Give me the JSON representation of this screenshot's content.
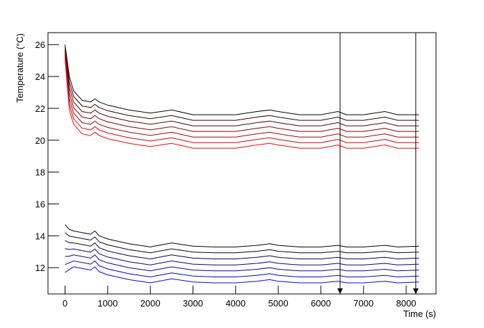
{
  "chart_data": {
    "type": "line",
    "x_label": "Time (s)",
    "y_label": "Temperature (°C)",
    "xlim": [
      -400,
      8700
    ],
    "ylim": [
      10.35,
      26.75
    ],
    "xticks": [
      0,
      1000,
      2000,
      3000,
      4000,
      5000,
      6000,
      7000,
      8000
    ],
    "yticks": [
      12,
      14,
      16,
      18,
      20,
      22,
      24,
      26
    ],
    "markers": [
      6450,
      8225
    ],
    "x": [
      0,
      100,
      200,
      400,
      600,
      700,
      800,
      1000,
      1500,
      2000,
      2500,
      3000,
      3500,
      4000,
      4500,
      4800,
      5000,
      5500,
      6000,
      6400,
      6600,
      7000,
      7500,
      7800,
      8300
    ],
    "series": [
      {
        "color": "#000000",
        "values": [
          26.0,
          24.0,
          23.1,
          22.5,
          22.4,
          22.6,
          22.4,
          22.2,
          21.9,
          21.7,
          21.9,
          21.6,
          21.6,
          21.6,
          21.8,
          21.9,
          21.8,
          21.6,
          21.6,
          21.8,
          21.6,
          21.6,
          21.8,
          21.6,
          21.6
        ]
      },
      {
        "color": "#2a0000",
        "values": [
          25.85,
          23.65,
          22.75,
          22.15,
          22.05,
          22.25,
          22.05,
          21.85,
          21.55,
          21.35,
          21.55,
          21.25,
          21.25,
          21.25,
          21.45,
          21.55,
          21.45,
          21.25,
          21.25,
          21.45,
          21.25,
          21.25,
          21.45,
          21.25,
          21.25
        ]
      },
      {
        "color": "#550000",
        "values": [
          25.7,
          23.3,
          22.4,
          21.8,
          21.7,
          21.9,
          21.7,
          21.5,
          21.2,
          21.0,
          21.2,
          20.9,
          20.9,
          20.9,
          21.1,
          21.2,
          21.1,
          20.9,
          20.9,
          21.1,
          20.9,
          20.9,
          21.1,
          20.9,
          20.9
        ]
      },
      {
        "color": "#800000",
        "values": [
          25.55,
          22.95,
          22.05,
          21.45,
          21.35,
          21.55,
          21.35,
          21.15,
          20.85,
          20.65,
          20.85,
          20.55,
          20.55,
          20.55,
          20.75,
          20.85,
          20.75,
          20.55,
          20.55,
          20.75,
          20.55,
          20.55,
          20.75,
          20.55,
          20.55
        ]
      },
      {
        "color": "#aa0000",
        "values": [
          25.4,
          22.6,
          21.7,
          21.1,
          21.0,
          21.2,
          21.0,
          20.8,
          20.5,
          20.3,
          20.5,
          20.2,
          20.2,
          20.2,
          20.4,
          20.5,
          20.4,
          20.2,
          20.2,
          20.4,
          20.2,
          20.2,
          20.4,
          20.2,
          20.2
        ]
      },
      {
        "color": "#d40000",
        "values": [
          25.25,
          22.25,
          21.35,
          20.75,
          20.65,
          20.85,
          20.65,
          20.45,
          20.15,
          19.95,
          20.15,
          19.85,
          19.85,
          19.85,
          20.05,
          20.15,
          20.05,
          19.85,
          19.85,
          20.05,
          19.85,
          19.85,
          20.05,
          19.85,
          19.85
        ]
      },
      {
        "color": "#ff0000",
        "values": [
          25.1,
          21.9,
          21.0,
          20.4,
          20.3,
          20.5,
          20.3,
          20.1,
          19.8,
          19.6,
          19.8,
          19.5,
          19.5,
          19.5,
          19.7,
          19.8,
          19.7,
          19.5,
          19.5,
          19.7,
          19.5,
          19.5,
          19.7,
          19.5,
          19.5
        ]
      },
      {
        "color": "#000000",
        "values": [
          14.7,
          14.4,
          14.3,
          14.2,
          14.1,
          14.3,
          14.0,
          13.8,
          13.5,
          13.3,
          13.55,
          13.35,
          13.3,
          13.3,
          13.4,
          13.5,
          13.4,
          13.3,
          13.3,
          13.4,
          13.3,
          13.3,
          13.4,
          13.3,
          13.35
        ]
      },
      {
        "color": "#00002a",
        "values": [
          14.2,
          13.98,
          13.93,
          13.83,
          13.73,
          13.93,
          13.63,
          13.43,
          13.13,
          12.93,
          13.18,
          12.98,
          12.93,
          12.93,
          13.03,
          13.13,
          13.03,
          12.93,
          12.93,
          13.03,
          12.93,
          12.93,
          13.03,
          12.93,
          12.98
        ]
      },
      {
        "color": "#000055",
        "values": [
          13.7,
          13.56,
          13.55,
          13.45,
          13.35,
          13.55,
          13.25,
          13.05,
          12.75,
          12.55,
          12.8,
          12.6,
          12.55,
          12.55,
          12.65,
          12.75,
          12.65,
          12.55,
          12.55,
          12.65,
          12.55,
          12.55,
          12.65,
          12.55,
          12.6
        ]
      },
      {
        "color": "#000080",
        "values": [
          13.2,
          13.14,
          13.17,
          13.07,
          12.97,
          13.17,
          12.87,
          12.67,
          12.37,
          12.17,
          12.42,
          12.22,
          12.17,
          12.17,
          12.27,
          12.37,
          12.27,
          12.17,
          12.17,
          12.27,
          12.17,
          12.17,
          12.27,
          12.17,
          12.22
        ]
      },
      {
        "color": "#0000aa",
        "values": [
          12.7,
          12.72,
          12.8,
          12.7,
          12.6,
          12.8,
          12.5,
          12.3,
          12.0,
          11.8,
          12.05,
          11.85,
          11.8,
          11.8,
          11.9,
          12.0,
          11.9,
          11.8,
          11.8,
          11.9,
          11.8,
          11.8,
          11.9,
          11.8,
          11.85
        ]
      },
      {
        "color": "#0000d4",
        "values": [
          12.2,
          12.3,
          12.42,
          12.32,
          12.22,
          12.42,
          12.12,
          11.92,
          11.62,
          11.42,
          11.67,
          11.47,
          11.42,
          11.42,
          11.52,
          11.62,
          11.52,
          11.42,
          11.42,
          11.52,
          11.42,
          11.42,
          11.52,
          11.42,
          11.47
        ]
      },
      {
        "color": "#0000ff",
        "values": [
          11.7,
          11.88,
          12.05,
          11.95,
          11.85,
          12.05,
          11.75,
          11.55,
          11.25,
          11.05,
          11.3,
          11.1,
          11.05,
          11.05,
          11.15,
          11.25,
          11.15,
          11.05,
          11.05,
          11.15,
          11.05,
          11.05,
          11.15,
          11.05,
          11.1
        ]
      }
    ]
  }
}
